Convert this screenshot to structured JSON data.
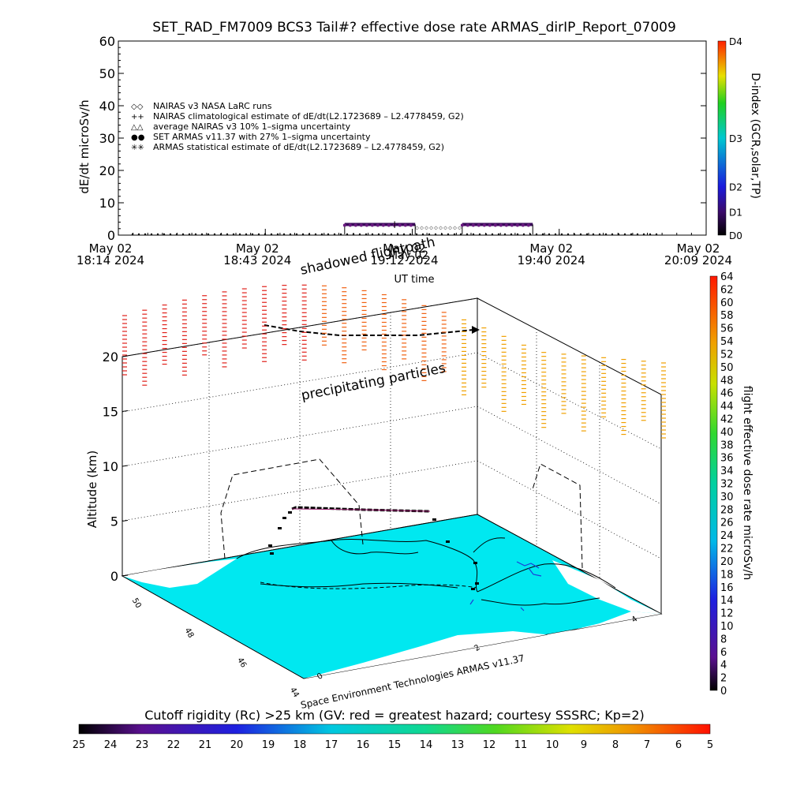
{
  "title": "SET_RAD_FM7009  BCS3 Tail#? effective dose rate ARMAS_dirIP_Report_07009",
  "footer_credit": "Space Environment Technologies ARMAS v11.37",
  "annotations": {
    "shadowed_flightpath": "shadowed flightpath",
    "overlap_label": "May 02",
    "precipitating": "precipitating particles"
  },
  "chart_data": [
    {
      "type": "line",
      "title": "SET_RAD_FM7009  BCS3 Tail#? effective dose rate ARMAS_dirIP_Report_07009",
      "ylabel": "dE/dt microSv/h",
      "xlabel": "UT time",
      "ylim": [
        0,
        60
      ],
      "yticks": [
        "0",
        "10",
        "20",
        "30",
        "40",
        "50",
        "60"
      ],
      "xticks": [
        {
          "line1": "May 02",
          "line2": "18:14 2024"
        },
        {
          "line1": "May 02",
          "line2": "18:43 2024"
        },
        {
          "line1": "May 02",
          "line2": "19:12 2024"
        },
        {
          "line1": "May 02",
          "line2": "19:40 2024"
        },
        {
          "line1": "May 02",
          "line2": "20:09 2024"
        }
      ],
      "legend": [
        {
          "symbol": "◇◇",
          "label": "NAIRAS v3 NASA LaRC runs"
        },
        {
          "symbol": "++",
          "label": "NAIRAS climatological estimate of dE/dt(L2.1723689 – L2.4778459, G2)"
        },
        {
          "symbol": "△△",
          "label": "average NAIRAS v3 10% 1–sigma uncertainty"
        },
        {
          "symbol": "●●",
          "label": "SET ARMAS v11.37 with 27% 1–sigma uncertainty"
        },
        {
          "symbol": "✳✳",
          "label": "ARMAS statistical estimate of dE/dt(L2.1723689 – L2.4778459, G2)"
        }
      ],
      "legend_placement": "top-left",
      "series": [
        {
          "name": "SET ARMAS v11.37 with 27% 1–sigma uncertainty",
          "color": "#3a0a5a",
          "segments": [
            {
              "x_start": 0.385,
              "x_end": 0.505,
              "value": 3.3
            },
            {
              "x_start": 0.585,
              "x_end": 0.705,
              "value": 3.3
            }
          ],
          "baseline_value": 0
        }
      ]
    },
    {
      "type": "scatter",
      "title": "",
      "ylabel": "Altitude (km)",
      "zticks": [
        "0",
        "5",
        "10",
        "15",
        "20"
      ],
      "colorbar_right": {
        "label": "flight effective dose rate microSv/h",
        "ticks": [
          "0",
          "2",
          "4",
          "6",
          "8",
          "10",
          "12",
          "14",
          "16",
          "18",
          "20",
          "22",
          "24",
          "26",
          "28",
          "30",
          "32",
          "34",
          "36",
          "38",
          "40",
          "42",
          "44",
          "46",
          "48",
          "50",
          "52",
          "54",
          "56",
          "58",
          "60",
          "62",
          "64"
        ]
      },
      "colorbar_left_top": {
        "label": "D-index (GCR,solar,TP)",
        "ticks": [
          "D0",
          "D1",
          "D2",
          "D3",
          "D4"
        ]
      },
      "colorbar_bottom": {
        "label": "Cutoff rigidity (Rc) >25 km (GV: red = greatest hazard; courtesy SSSRC; Kp=2)",
        "ticks": [
          "25",
          "24",
          "23",
          "22",
          "21",
          "20",
          "19",
          "18",
          "17",
          "16",
          "15",
          "14",
          "13",
          "12",
          "11",
          "10",
          "9",
          "8",
          "7",
          "6",
          "5"
        ]
      },
      "lat_ticks": [
        "50",
        "48",
        "46",
        "44"
      ],
      "lon_ticks": [
        "0",
        "2",
        "4"
      ]
    }
  ]
}
